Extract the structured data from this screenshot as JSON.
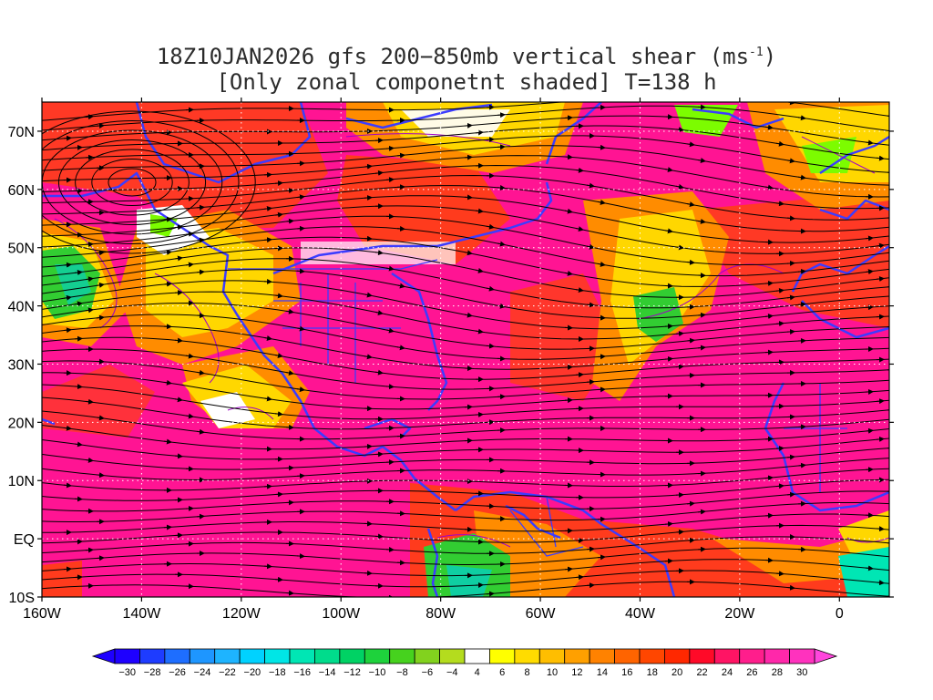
{
  "title": {
    "line1_prefix": "18Z10JAN2026 gfs 200−850mb vertical shear (ms",
    "line1_sup": "-1",
    "line1_suffix": ")",
    "line2": "[Only zonal componetnt shaded] T=138 h"
  },
  "map": {
    "lon_range": [
      -160,
      10
    ],
    "lat_range": [
      -10,
      75
    ],
    "lon_ticks": [
      {
        "lon": -160,
        "label": "160W"
      },
      {
        "lon": -140,
        "label": "140W"
      },
      {
        "lon": -120,
        "label": "120W"
      },
      {
        "lon": -100,
        "label": "100W"
      },
      {
        "lon": -80,
        "label": "80W"
      },
      {
        "lon": -60,
        "label": "60W"
      },
      {
        "lon": -40,
        "label": "40W"
      },
      {
        "lon": -20,
        "label": "20W"
      },
      {
        "lon": 0,
        "label": "0"
      }
    ],
    "lat_ticks": [
      {
        "lat": -10,
        "label": "10S"
      },
      {
        "lat": 0,
        "label": "EQ"
      },
      {
        "lat": 10,
        "label": "10N"
      },
      {
        "lat": 20,
        "label": "20N"
      },
      {
        "lat": 30,
        "label": "30N"
      },
      {
        "lat": 40,
        "label": "40N"
      },
      {
        "lat": 50,
        "label": "50N"
      },
      {
        "lat": 60,
        "label": "60N"
      },
      {
        "lat": 70,
        "label": "70N"
      }
    ],
    "field_colors": {
      "strong_positive": "#ff1493",
      "positive": "#ff4500",
      "moderate_positive": "#ff8c00",
      "weak_positive": "#ffd700",
      "near_zero": "#ffffff",
      "weak_negative": "#7cfc00",
      "negative": "#32cd32",
      "strong_negative": "#00ced1"
    },
    "coastline_color": "#3c3cff",
    "streamline_color": "#000000",
    "contour_color": "#a000c8"
  },
  "colorbar": {
    "min_label": "−30",
    "labels": [
      "−30",
      "−28",
      "−26",
      "−24",
      "−22",
      "−20",
      "−18",
      "−16",
      "−14",
      "−12",
      "−10",
      "−8",
      "−6",
      "−4",
      "4",
      "6",
      "8",
      "10",
      "12",
      "14",
      "16",
      "18",
      "20",
      "22",
      "24",
      "26",
      "28",
      "30"
    ],
    "colors": [
      "#1e00ff",
      "#1e3cff",
      "#1e6eff",
      "#1e96ff",
      "#1eb4ff",
      "#00d2ff",
      "#00e6e6",
      "#00e6b4",
      "#00dc8c",
      "#00d264",
      "#1ed23c",
      "#46d21e",
      "#82d21e",
      "#b4dc1e",
      "#ffffff",
      "#ffff00",
      "#ffdc00",
      "#ffbe00",
      "#ffa000",
      "#ff8200",
      "#ff6400",
      "#ff4600",
      "#ff2800",
      "#ff0a28",
      "#ff1464",
      "#ff1e8c",
      "#ff28aa",
      "#ff32be"
    ],
    "left_arrow_color": "#1e00ff",
    "right_arrow_color": "#ff46dc"
  }
}
